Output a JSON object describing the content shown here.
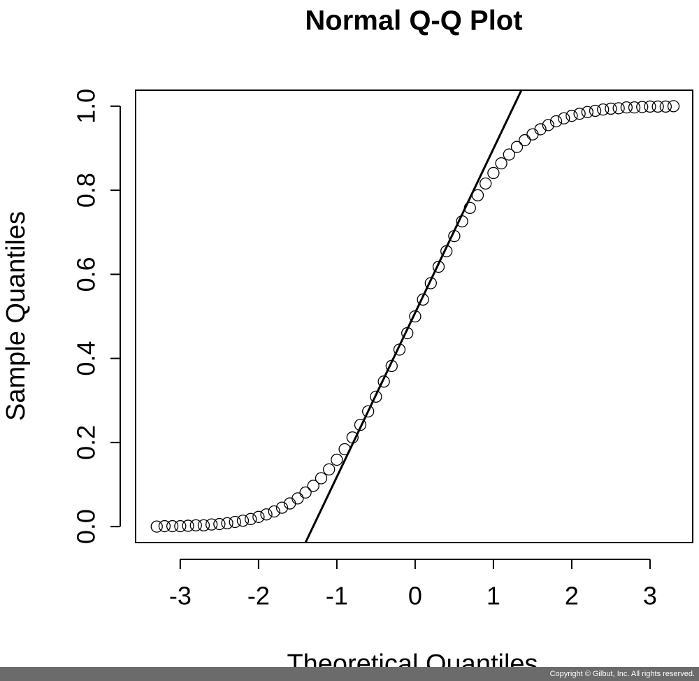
{
  "chart_data": {
    "type": "scatter",
    "title": "Normal Q-Q Plot",
    "x_label": "Theoretical Quantiles",
    "y_label": "Sample Quantiles",
    "copyright": "Copyright © Gilbut, Inc. All rights reserved.",
    "xlim": [
      -3.57,
      3.545
    ],
    "ylim": [
      -0.038,
      1.038
    ],
    "xticks": [
      -3,
      -2,
      -1,
      0,
      1,
      2,
      3
    ],
    "yticks": [
      {
        "value": 0,
        "label": "0.0"
      },
      0.2,
      0.4,
      0.6,
      0.8,
      {
        "value": 1,
        "label": "1.0"
      }
    ],
    "x": [
      -3.3,
      -3.2,
      -3.1,
      -3.0,
      -2.9,
      -2.8,
      -2.7,
      -2.6,
      -2.5,
      -2.4,
      -2.3,
      -2.2,
      -2.1,
      -2.0,
      -1.9,
      -1.8,
      -1.7,
      -1.6,
      -1.5,
      -1.4,
      -1.3,
      -1.2,
      -1.1,
      -1.0,
      -0.9,
      -0.8,
      -0.7,
      -0.6,
      -0.5,
      -0.4,
      -0.3,
      -0.2,
      -0.1,
      0,
      0.1,
      0.2,
      0.3,
      0.4,
      0.5,
      0.6,
      0.7,
      0.8,
      0.9,
      1.0,
      1.1,
      1.2,
      1.3,
      1.4,
      1.5,
      1.6,
      1.7,
      1.8,
      1.9,
      2.0,
      2.1,
      2.2,
      2.3,
      2.4,
      2.5,
      2.6,
      2.7,
      2.8,
      2.9,
      3.0,
      3.1,
      3.2,
      3.3
    ],
    "values": [
      0.0,
      0.001,
      0.001,
      0.001,
      0.002,
      0.003,
      0.003,
      0.005,
      0.006,
      0.008,
      0.011,
      0.014,
      0.018,
      0.023,
      0.029,
      0.036,
      0.045,
      0.055,
      0.067,
      0.081,
      0.097,
      0.115,
      0.136,
      0.159,
      0.184,
      0.212,
      0.242,
      0.274,
      0.309,
      0.345,
      0.382,
      0.421,
      0.46,
      0.5,
      0.54,
      0.579,
      0.618,
      0.655,
      0.691,
      0.726,
      0.758,
      0.788,
      0.816,
      0.841,
      0.864,
      0.885,
      0.903,
      0.919,
      0.933,
      0.945,
      0.955,
      0.964,
      0.971,
      0.977,
      0.982,
      0.986,
      0.989,
      0.992,
      0.994,
      0.995,
      0.997,
      0.997,
      0.998,
      0.999,
      0.999,
      0.999,
      1.0
    ],
    "color": "#000000",
    "reference_line": {
      "x": [
        -1.4,
        1.357
      ],
      "y": [
        -0.038,
        1.038
      ]
    }
  }
}
